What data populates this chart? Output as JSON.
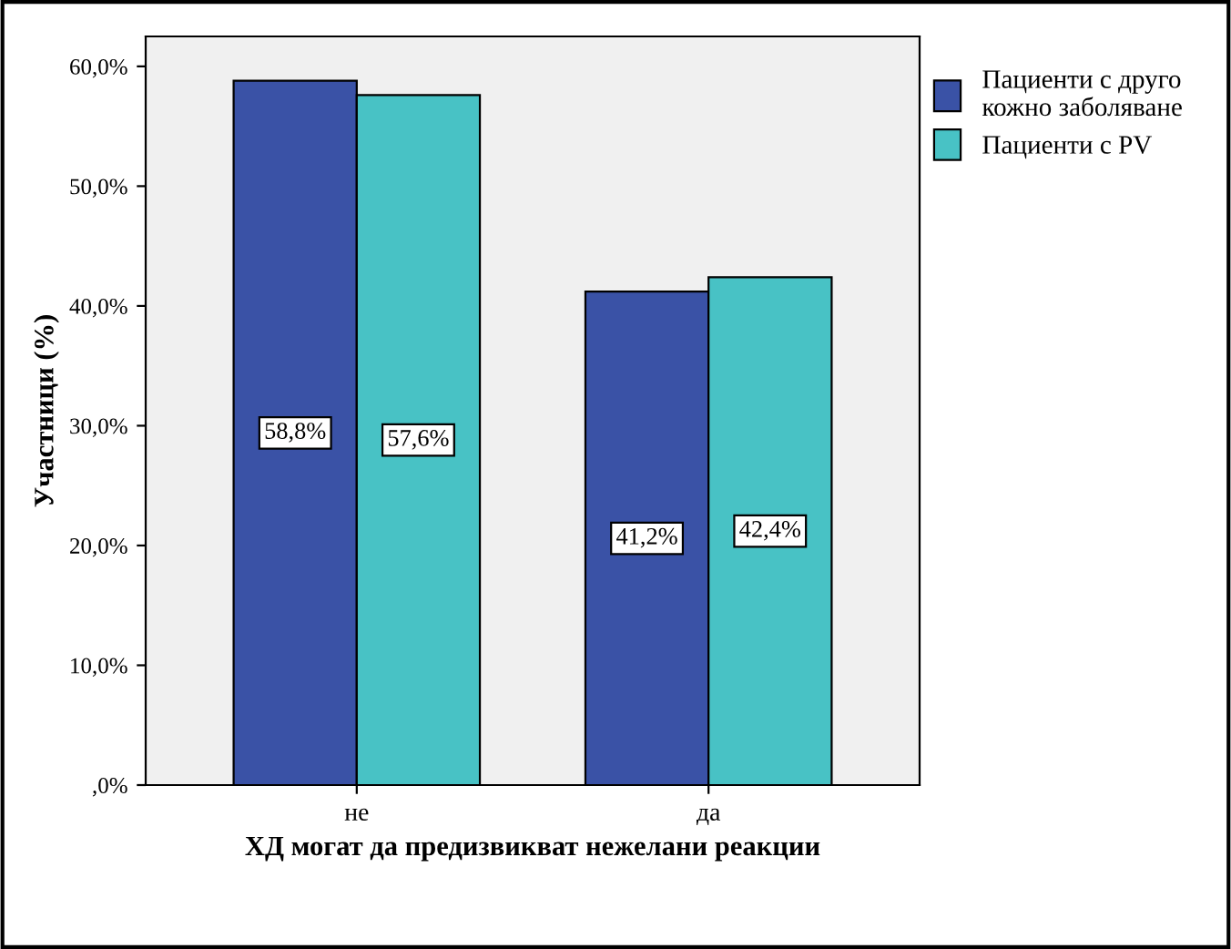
{
  "chart_data": {
    "type": "bar",
    "xlabel": "ХД могат да предизвикват нежелани реакции",
    "ylabel": "Участници (%)",
    "categories": [
      "не",
      "да"
    ],
    "series": [
      {
        "name": "Пациенти с друго кожно заболяване",
        "color": "#3a52a6",
        "values": [
          58.8,
          41.2
        ],
        "value_labels": [
          "58,8%",
          "41,2%"
        ]
      },
      {
        "name": "Пациенти с PV",
        "color": "#48c2c5",
        "values": [
          57.6,
          42.4
        ],
        "value_labels": [
          "57,6%",
          "42,4%"
        ]
      }
    ],
    "ylim": [
      0,
      62.5
    ],
    "yticks": [
      {
        "value": 0,
        "label": ",0%"
      },
      {
        "value": 10,
        "label": "10,0%"
      },
      {
        "value": 20,
        "label": "20,0%"
      },
      {
        "value": 30,
        "label": "30,0%"
      },
      {
        "value": 40,
        "label": "40,0%"
      },
      {
        "value": 50,
        "label": "50,0%"
      },
      {
        "value": 60,
        "label": "60,0%"
      }
    ],
    "grid": false,
    "legend": "right"
  }
}
